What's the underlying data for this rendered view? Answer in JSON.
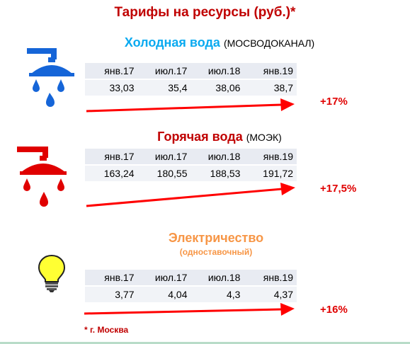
{
  "title": "Тарифы на ресурсы (руб.)*",
  "colors": {
    "title": "#c00000",
    "cold": "#0aaaf0",
    "hot": "#c00000",
    "electric": "#f79646",
    "arrow": "#ff0000",
    "percent": "#e00000"
  },
  "cold_water": {
    "name": "Холодная вода",
    "provider": "(МОСВОДОКАНАЛ)",
    "icon": "cold-water-tap-icon",
    "periods": [
      "янв.17",
      "июл.17",
      "июл.18",
      "янв.19"
    ],
    "values": [
      "33,03",
      "35,4",
      "38,06",
      "38,7"
    ],
    "change": "+17%"
  },
  "hot_water": {
    "name": "Горячая вода",
    "provider": "(МОЭК)",
    "icon": "hot-water-tap-icon",
    "periods": [
      "янв.17",
      "июл.17",
      "июл.18",
      "янв.19"
    ],
    "values": [
      "163,24",
      "180,55",
      "188,53",
      "191,72"
    ],
    "change": "+17,5%"
  },
  "electricity": {
    "name": "Электричество",
    "tariff": "(одноставочный)",
    "icon": "light-bulb-icon",
    "periods": [
      "янв.17",
      "июл.17",
      "июл.18",
      "янв.19"
    ],
    "values": [
      "3,77",
      "4,04",
      "4,3",
      "4,37"
    ],
    "change": "+16%"
  },
  "footnote": "* г. Москва"
}
